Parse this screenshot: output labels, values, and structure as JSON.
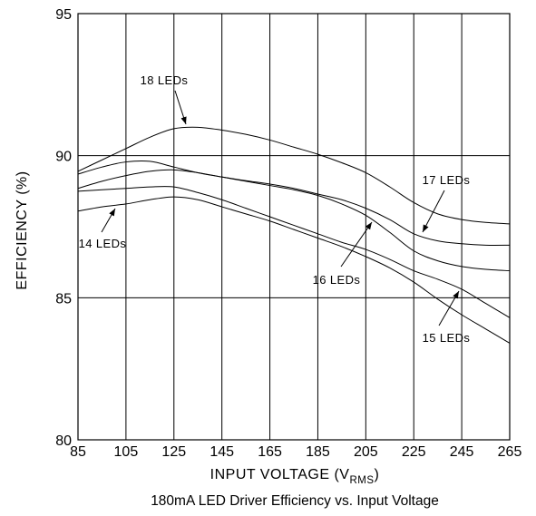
{
  "chart_data": {
    "type": "line",
    "title": "180mA LED Driver Efficiency vs. Input Voltage",
    "xlabel": "INPUT VOLTAGE (V",
    "xlabel_subscript": "RMS",
    "xlabel_suffix": ")",
    "ylabel": "EFFICIENCY (%)",
    "xlim": [
      85,
      265
    ],
    "ylim": [
      80,
      95
    ],
    "x_ticks": [
      85,
      105,
      125,
      145,
      165,
      185,
      205,
      225,
      245,
      265
    ],
    "y_ticks": [
      80,
      85,
      90,
      95
    ],
    "grid": true,
    "x": [
      85,
      95,
      105,
      115,
      125,
      135,
      145,
      155,
      165,
      175,
      185,
      195,
      205,
      215,
      225,
      235,
      245,
      255,
      265
    ],
    "series": [
      {
        "name": "18 LEDs",
        "values": [
          89.45,
          89.85,
          90.25,
          90.65,
          90.95,
          91.0,
          90.9,
          90.75,
          90.55,
          90.3,
          90.05,
          89.75,
          89.4,
          88.9,
          88.35,
          87.95,
          87.75,
          87.65,
          87.6
        ]
      },
      {
        "name": "17 LEDs",
        "values": [
          89.35,
          89.6,
          89.78,
          89.8,
          89.6,
          89.4,
          89.25,
          89.12,
          89.0,
          88.85,
          88.65,
          88.45,
          88.15,
          87.75,
          87.25,
          87.0,
          86.9,
          86.85,
          86.85
        ]
      },
      {
        "name": "16 LEDs",
        "values": [
          88.85,
          89.1,
          89.3,
          89.45,
          89.5,
          89.4,
          89.25,
          89.1,
          88.95,
          88.8,
          88.6,
          88.3,
          87.9,
          87.3,
          86.65,
          86.3,
          86.1,
          86.0,
          85.95
        ]
      },
      {
        "name": "15 LEDs",
        "values": [
          88.75,
          88.8,
          88.85,
          88.9,
          88.9,
          88.7,
          88.45,
          88.15,
          87.85,
          87.55,
          87.25,
          86.95,
          86.7,
          86.35,
          85.95,
          85.65,
          85.3,
          84.8,
          84.3
        ]
      },
      {
        "name": "14 LEDs",
        "values": [
          88.05,
          88.2,
          88.3,
          88.45,
          88.55,
          88.45,
          88.2,
          87.95,
          87.7,
          87.4,
          87.1,
          86.8,
          86.45,
          86.05,
          85.55,
          84.95,
          84.4,
          83.9,
          83.4
        ]
      }
    ]
  }
}
